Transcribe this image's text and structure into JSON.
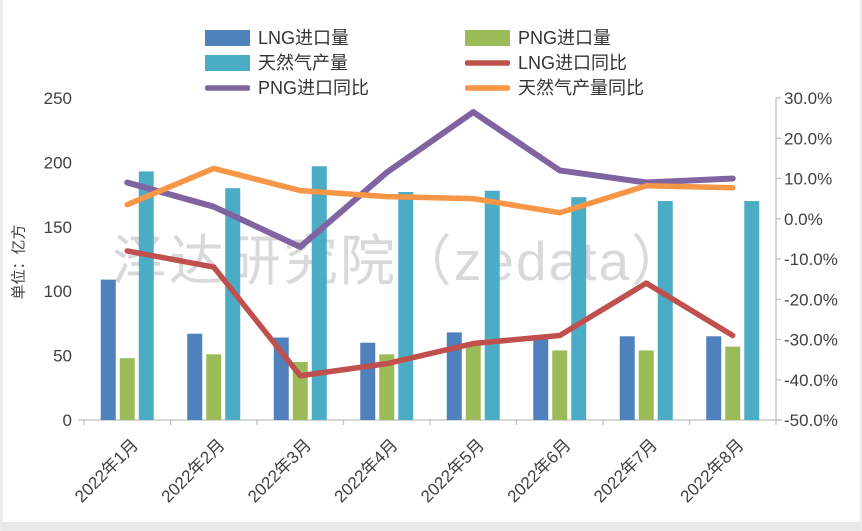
{
  "page": {
    "bg": "#ffffff",
    "edge_color": "#e8e8e8"
  },
  "watermark": {
    "text": "泽达研究院（zedata）",
    "color": "#d9d9d9"
  },
  "chart_data": {
    "type": "bar",
    "title": "",
    "categories": [
      "2022年1月",
      "2022年2月",
      "2022年3月",
      "2022年4月",
      "2022年5月",
      "2022年6月",
      "2022年7月",
      "2022年8月"
    ],
    "series": [
      {
        "name": "LNG进口量",
        "type": "bar",
        "axis": "left",
        "color": "#4F81BD",
        "values": [
          109,
          67,
          64,
          60,
          68,
          66,
          65,
          65
        ]
      },
      {
        "name": "PNG进口量",
        "type": "bar",
        "axis": "left",
        "color": "#9BBB59",
        "values": [
          48,
          51,
          45,
          51,
          58,
          54,
          54,
          57
        ]
      },
      {
        "name": "天然气产量",
        "type": "bar",
        "axis": "left",
        "color": "#4BACC6",
        "values": [
          193,
          180,
          197,
          177,
          178,
          173,
          170,
          170
        ]
      },
      {
        "name": "LNG进口同比",
        "type": "line",
        "axis": "right",
        "color": "#C0504D",
        "values": [
          -8,
          -12,
          -39,
          -36,
          -31,
          -29,
          -16,
          -29
        ]
      },
      {
        "name": "PNG进口同比",
        "type": "line",
        "axis": "right",
        "color": "#8064A2",
        "values": [
          9,
          3,
          -7,
          11.5,
          26.5,
          12,
          9,
          10
        ]
      },
      {
        "name": "天然气产量同比",
        "type": "line",
        "axis": "right",
        "color": "#F79646",
        "values": [
          3.5,
          12.5,
          7,
          5.5,
          5,
          1.5,
          8.2,
          7.7
        ]
      }
    ],
    "left_axis": {
      "label": "单位：亿方",
      "min": 0,
      "max": 250,
      "step": 50,
      "tick_labels": [
        "250",
        "200",
        "150",
        "100",
        "50",
        "0"
      ]
    },
    "right_axis": {
      "label": "",
      "min": -50,
      "max": 30,
      "step": 10,
      "tick_labels": [
        "30.0%",
        "20.0%",
        "10.0%",
        "0.0%",
        "-10.0%",
        "-20.0%",
        "-30.0%",
        "-40.0%",
        "-50.0%"
      ]
    },
    "legend": {
      "position": "top",
      "columns": 2
    },
    "grid": false,
    "styles": {
      "axis_line_color": "#bfbfbf",
      "text_color": "#404040",
      "axis_font_size": 17,
      "legend_font_size": 18,
      "x_label_font_size": 17
    }
  }
}
